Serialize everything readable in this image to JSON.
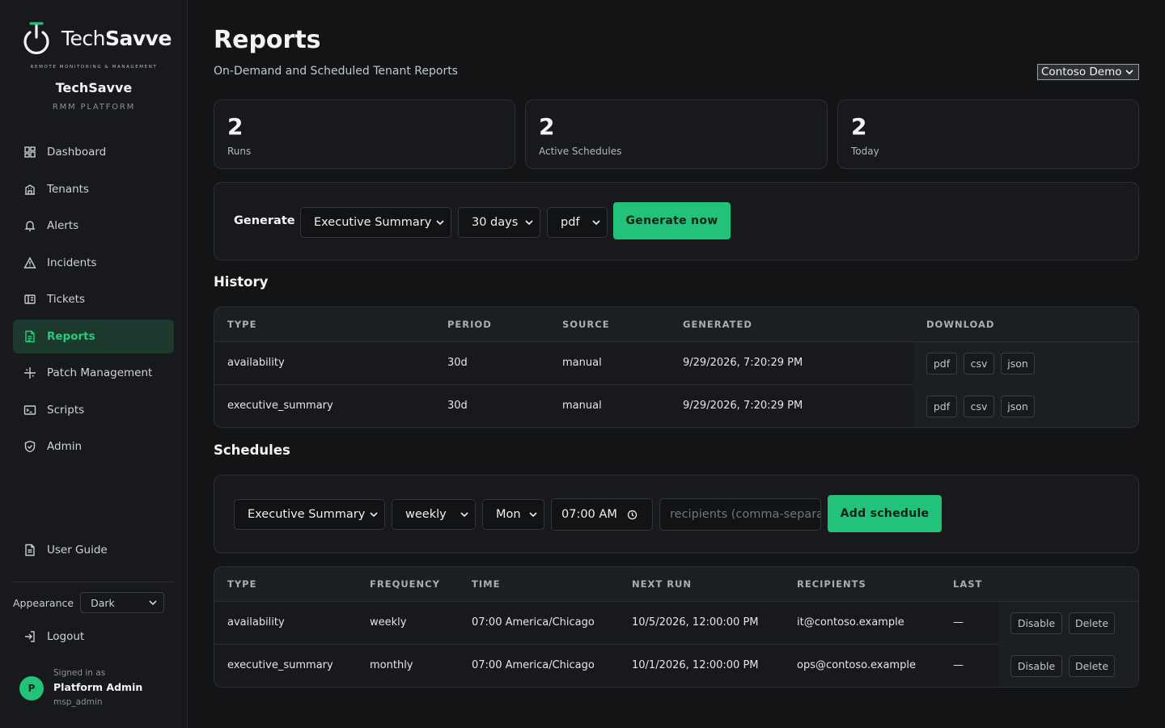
{
  "sidebar": {
    "logo_text_light": "Tech",
    "logo_text_bold": "Savve",
    "logo_tagline": "REMOTE MONITORING & MANAGEMENT",
    "brand_name": "TechSavve",
    "brand_sub": "RMM PLATFORM",
    "nav": [
      {
        "label": "Dashboard",
        "icon": "dashboard-icon"
      },
      {
        "label": "Tenants",
        "icon": "building-icon"
      },
      {
        "label": "Alerts",
        "icon": "bell-icon"
      },
      {
        "label": "Incidents",
        "icon": "warning-icon"
      },
      {
        "label": "Tickets",
        "icon": "ticket-icon"
      },
      {
        "label": "Reports",
        "icon": "report-icon",
        "active": true
      },
      {
        "label": "Patch Management",
        "icon": "sparkle-icon"
      },
      {
        "label": "Scripts",
        "icon": "terminal-icon"
      },
      {
        "label": "Admin",
        "icon": "shield-icon"
      }
    ],
    "user_guide": "User Guide",
    "appearance_label": "Appearance",
    "appearance_value": "Dark",
    "logout": "Logout",
    "signed_in_label": "Signed in as",
    "user_name": "Platform Admin",
    "user_role": "msp_admin",
    "avatar_initial": "P"
  },
  "header": {
    "title": "Reports",
    "subtitle": "On-Demand and Scheduled Tenant Reports",
    "tenant": "Contoso Demo"
  },
  "stats": [
    {
      "value": "2",
      "label": "Runs"
    },
    {
      "value": "2",
      "label": "Active Schedules"
    },
    {
      "value": "2",
      "label": "Today"
    }
  ],
  "generate": {
    "label": "Generate",
    "type": "Executive Summary",
    "period": "30 days",
    "format": "pdf",
    "button": "Generate now"
  },
  "history": {
    "title": "History",
    "columns": [
      "TYPE",
      "PERIOD",
      "SOURCE",
      "GENERATED",
      "DOWNLOAD"
    ],
    "rows": [
      {
        "type": "availability",
        "period": "30d",
        "source": "manual",
        "generated": "9/29/2026, 7:20:29 PM"
      },
      {
        "type": "executive_summary",
        "period": "30d",
        "source": "manual",
        "generated": "9/29/2026, 7:20:29 PM"
      }
    ],
    "download_formats": [
      "pdf",
      "csv",
      "json"
    ]
  },
  "schedules": {
    "title": "Schedules",
    "form": {
      "type": "Executive Summary",
      "frequency": "weekly",
      "day": "Mon",
      "time": "07:00 AM",
      "recipients_placeholder": "recipients (comma-separated)",
      "button": "Add schedule"
    },
    "columns": [
      "TYPE",
      "FREQUENCY",
      "TIME",
      "NEXT RUN",
      "RECIPIENTS",
      "LAST"
    ],
    "rows": [
      {
        "type": "availability",
        "frequency": "weekly",
        "time": "07:00 America/Chicago",
        "next_run": "10/5/2026, 12:00:00 PM",
        "recipients": "it@contoso.example",
        "last": "—"
      },
      {
        "type": "executive_summary",
        "frequency": "monthly",
        "time": "07:00 America/Chicago",
        "next_run": "10/1/2026, 12:00:00 PM",
        "recipients": "ops@contoso.example",
        "last": "—"
      }
    ],
    "actions": {
      "disable": "Disable",
      "delete": "Delete"
    }
  },
  "colors": {
    "accent": "#22c27a",
    "background": "#121416",
    "sidebar": "#17191c",
    "active_nav_bg": "#1b3a2d"
  }
}
